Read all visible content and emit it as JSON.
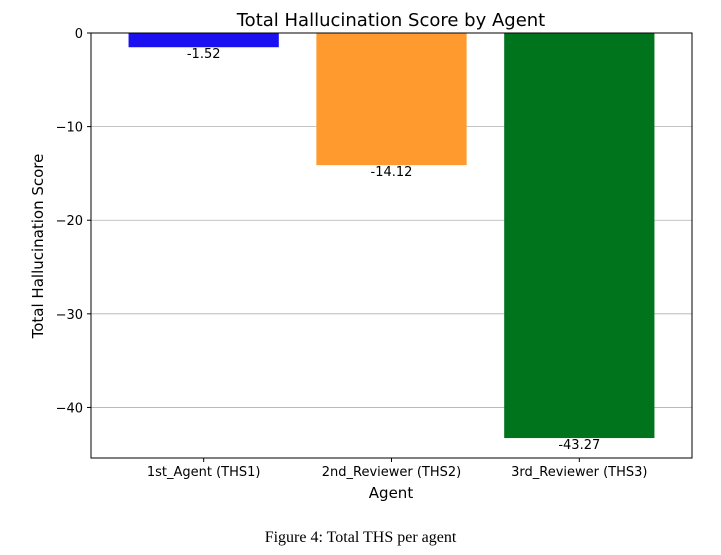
{
  "chart_data": {
    "type": "bar",
    "title": "Total Hallucination Score by Agent",
    "xlabel": "Agent",
    "ylabel": "Total Hallucination Score",
    "categories": [
      "1st_Agent (THS1)",
      "2nd_Reviewer (THS2)",
      "3rd_Reviewer (THS3)"
    ],
    "values": [
      -1.52,
      -14.12,
      -43.27
    ],
    "value_labels": [
      "-1.52",
      "-14.12",
      "-43.27"
    ],
    "colors": [
      "#1a10f0",
      "#ff9a2e",
      "#00731d"
    ],
    "ylim": [
      -45.4,
      0
    ],
    "yticks": [
      0,
      -10,
      -20,
      -30,
      -40
    ],
    "ytick_labels": [
      "0",
      "−10",
      "−20",
      "−30",
      "−40"
    ],
    "grid": "horizontal",
    "legend": "none"
  },
  "caption": "Figure 4: Total THS per agent"
}
